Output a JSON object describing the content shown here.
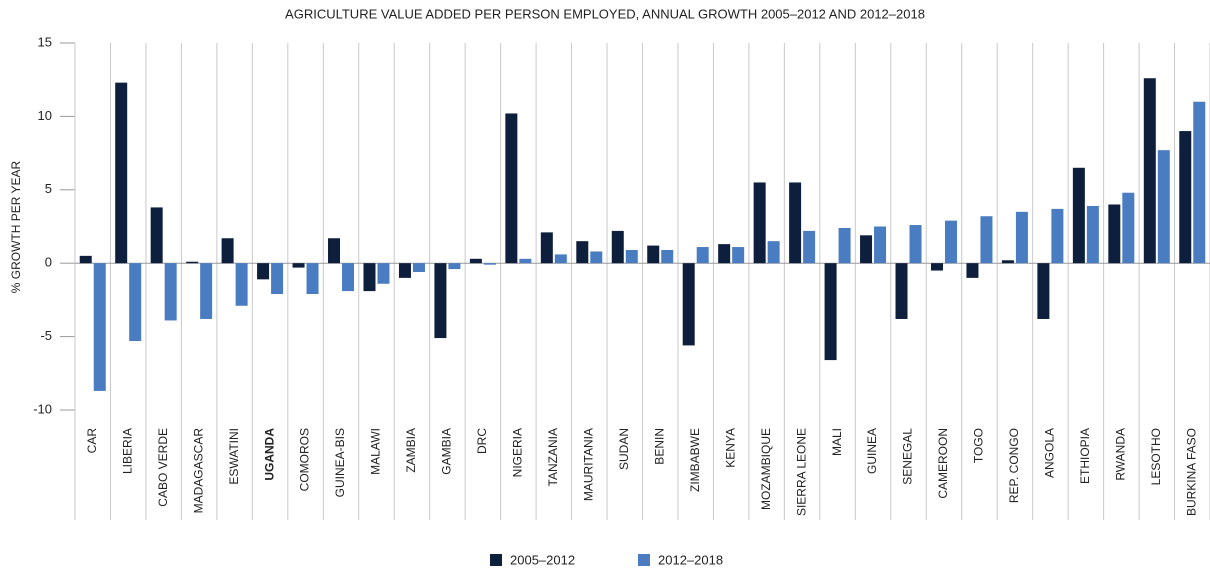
{
  "chart_data": {
    "type": "bar",
    "title": "AGRICULTURE VALUE ADDED PER PERSON EMPLOYED, ANNUAL GROWTH 2005–2012 AND 2012–2018",
    "y_label": "% GROWTH PER YEAR",
    "categories": [
      "CAR",
      "LIBERIA",
      "CABO VERDE",
      "MADAGASCAR",
      "ESWATINI",
      "UGANDA",
      "COMOROS",
      "GUINEA-BIS",
      "MALAWI",
      "ZAMBIA",
      "GAMBIA",
      "DRC",
      "NIGERIA",
      "TANZANIA",
      "MAURITANIA",
      "SUDAN",
      "BENIN",
      "ZIMBABWE",
      "KENYA",
      "MOZAMBIQUE",
      "SIERRA LEONE",
      "MALI",
      "GUINEA",
      "SENEGAL",
      "CAMEROON",
      "TOGO",
      "REP. CONGO",
      "ANGOLA",
      "ETHIOPIA",
      "RWANDA",
      "LESOTHO",
      "BURKINA FASO"
    ],
    "highlight": "UGANDA",
    "series": [
      {
        "name": "2005–2012",
        "color": "#0e1f3d",
        "values": [
          0.5,
          12.3,
          3.8,
          0.1,
          1.7,
          -1.1,
          -0.3,
          1.7,
          -1.9,
          -1.0,
          -5.1,
          0.3,
          10.2,
          2.1,
          1.5,
          2.2,
          1.2,
          -5.6,
          1.3,
          5.5,
          5.5,
          -6.6,
          1.9,
          -3.8,
          -0.5,
          -1.0,
          0.2,
          -3.8,
          6.5,
          4.0,
          12.6,
          9.0
        ]
      },
      {
        "name": "2012–2018",
        "color": "#4a7cc2",
        "values": [
          -8.7,
          -5.3,
          -3.9,
          -3.8,
          -2.9,
          -2.1,
          -2.1,
          -1.9,
          -1.4,
          -0.6,
          -0.4,
          -0.1,
          0.3,
          0.6,
          0.8,
          0.9,
          0.9,
          1.1,
          1.1,
          1.5,
          2.2,
          2.4,
          2.5,
          2.6,
          2.9,
          3.2,
          3.5,
          3.7,
          3.9,
          4.8,
          7.7,
          11.0
        ]
      }
    ],
    "ylim": [
      -10,
      15
    ],
    "yticks": [
      15,
      10,
      5,
      0,
      -5,
      -10
    ]
  }
}
